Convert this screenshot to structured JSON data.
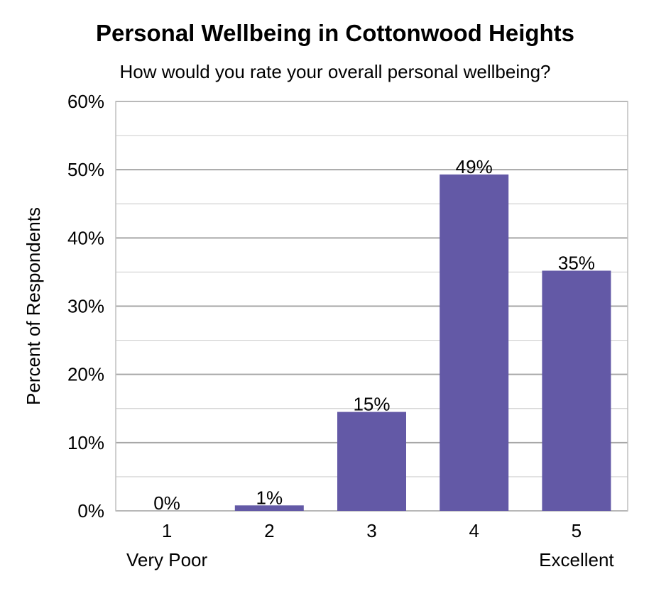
{
  "chart_data": {
    "type": "bar",
    "title": "Personal Wellbeing in Cottonwood Heights",
    "subtitle": "How would you rate your overall personal wellbeing?",
    "ylabel": "Percent of Respondents",
    "xlabel": "",
    "categories": [
      "1",
      "2",
      "3",
      "4",
      "5"
    ],
    "category_sublabels": [
      "Very Poor",
      "",
      "",
      "",
      "Excellent"
    ],
    "values": [
      0,
      1,
      15,
      49,
      35
    ],
    "bar_values": [
      0,
      0.8,
      14.5,
      49.3,
      35.2
    ],
    "data_labels": [
      "0%",
      "1%",
      "15%",
      "49%",
      "35%"
    ],
    "ylim": [
      0,
      60
    ],
    "yticks": [
      "0%",
      "10%",
      "20%",
      "30%",
      "40%",
      "50%",
      "60%"
    ],
    "grid": true,
    "legend": "none",
    "bar_color": "#6359A6",
    "grid_color": "#BFBFBF"
  }
}
